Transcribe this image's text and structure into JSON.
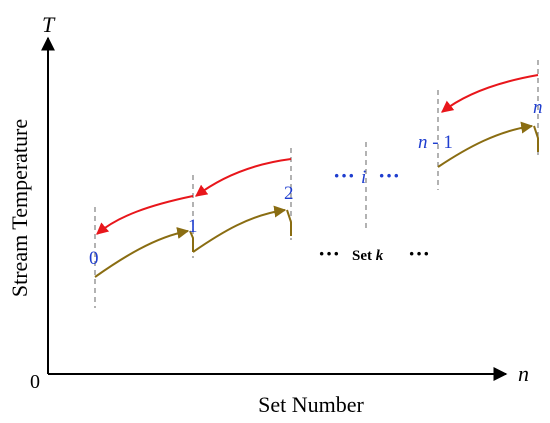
{
  "axes": {
    "y_symbol": "T",
    "x_symbol": "n",
    "origin": "0",
    "y_label": "Stream Temperature",
    "x_label": "Set Number"
  },
  "points": {
    "p0": "0",
    "p1": "1",
    "p2": "2",
    "pi": "i",
    "pn_minus_1_n": "n",
    "pn_minus_1_rest": " - 1",
    "pn": "n"
  },
  "dots": {
    "middle": "···",
    "left": "···",
    "right": "···"
  },
  "set_label": {
    "prefix": "Set ",
    "var": "k"
  },
  "colors": {
    "hot_stream": "#e8161b",
    "cold_stream": "#8a6d12",
    "index_text": "#1f3ecf",
    "axis": "#000000",
    "guide": "#808080"
  }
}
